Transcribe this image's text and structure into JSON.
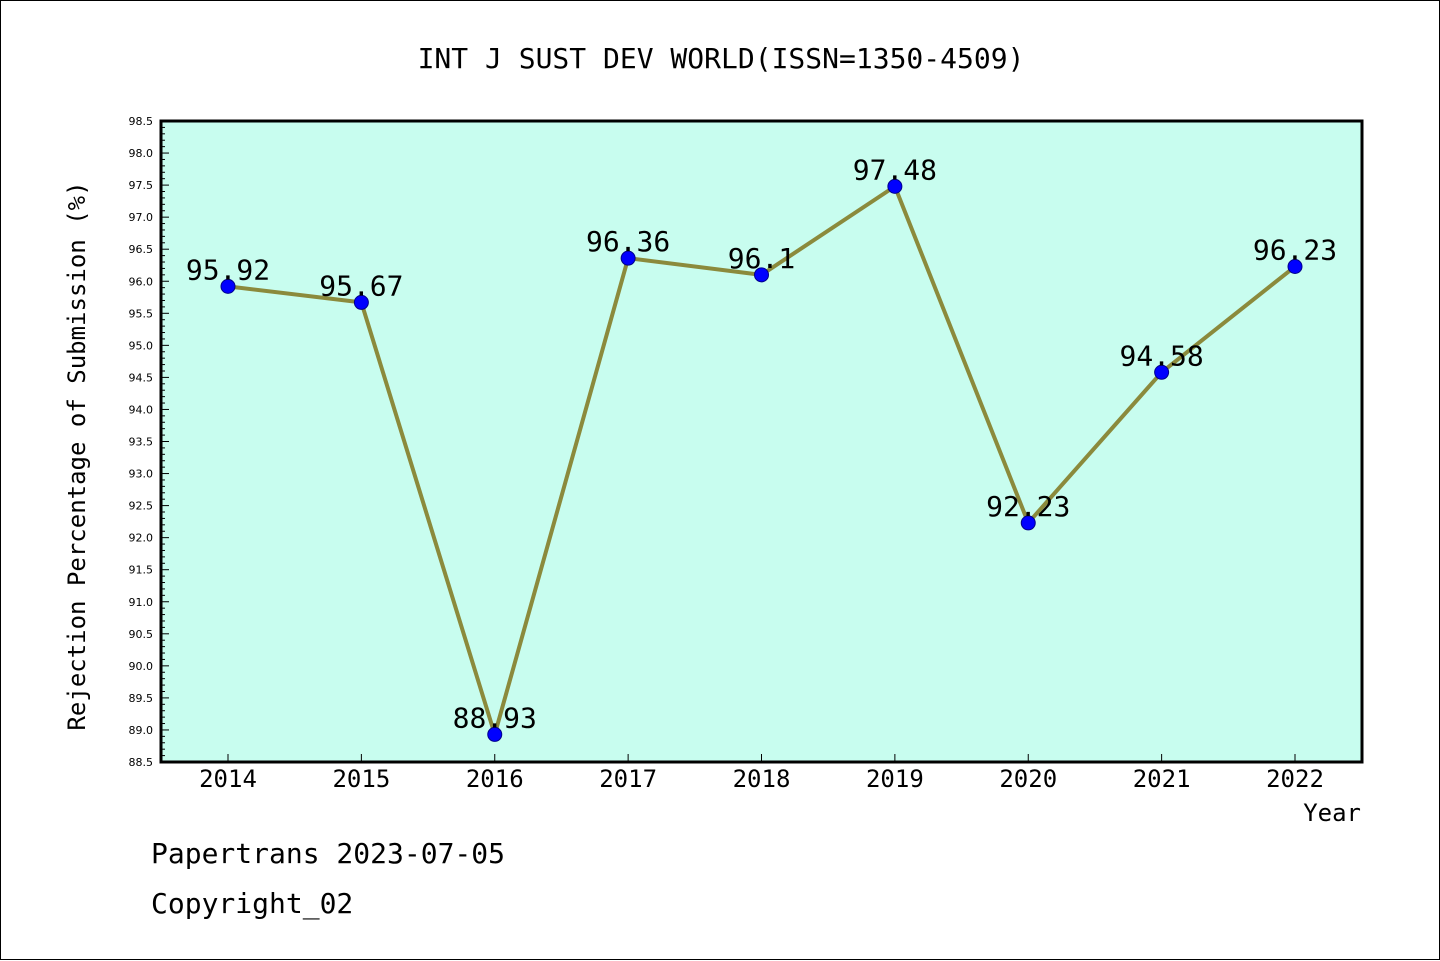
{
  "chart_data": {
    "type": "line",
    "title": "INT J SUST DEV WORLD(ISSN=1350-4509)",
    "xlabel": "Year",
    "ylabel": "Rejection Percentage of Submission (%)",
    "categories": [
      "2014",
      "2015",
      "2016",
      "2017",
      "2018",
      "2019",
      "2020",
      "2021",
      "2022"
    ],
    "values": [
      95.92,
      95.67,
      88.93,
      96.36,
      96.1,
      97.48,
      92.23,
      94.58,
      96.23
    ],
    "data_labels": [
      "95.92",
      "95.67",
      "88.93",
      "96.36",
      "96.1",
      "97.48",
      "92.23",
      "94.58",
      "96.23"
    ],
    "ylim": [
      88.5,
      98.5
    ],
    "ytick_step": 0.5,
    "grid": false,
    "colors": {
      "plot_background": "#c8fdef",
      "line": "#8b8a3c",
      "marker": "#0000ff"
    }
  },
  "footer": {
    "line1": "Papertrans 2023-07-05",
    "line2": "Copyright_02"
  }
}
